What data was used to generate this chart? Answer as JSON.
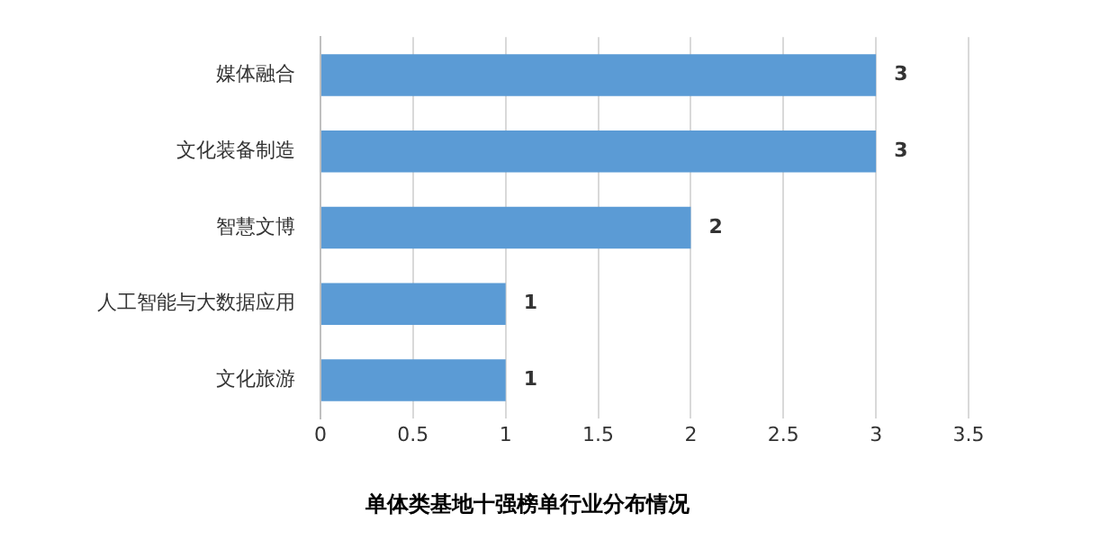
{
  "chart_data": {
    "type": "bar",
    "orientation": "horizontal",
    "title": "单体类基地十强榜单行业分布情况",
    "categories": [
      "媒体融合",
      "文化装备制造",
      "智慧文博",
      "人工智能与大数据应用",
      "文化旅游"
    ],
    "values": [
      3,
      3,
      2,
      1,
      1
    ],
    "color": "#5b9bd5",
    "xlim": [
      0,
      3.5
    ],
    "xticks": [
      0,
      0.5,
      1,
      1.5,
      2,
      2.5,
      3,
      3.5
    ],
    "grid": "x",
    "data_labels": true,
    "legend": false
  }
}
